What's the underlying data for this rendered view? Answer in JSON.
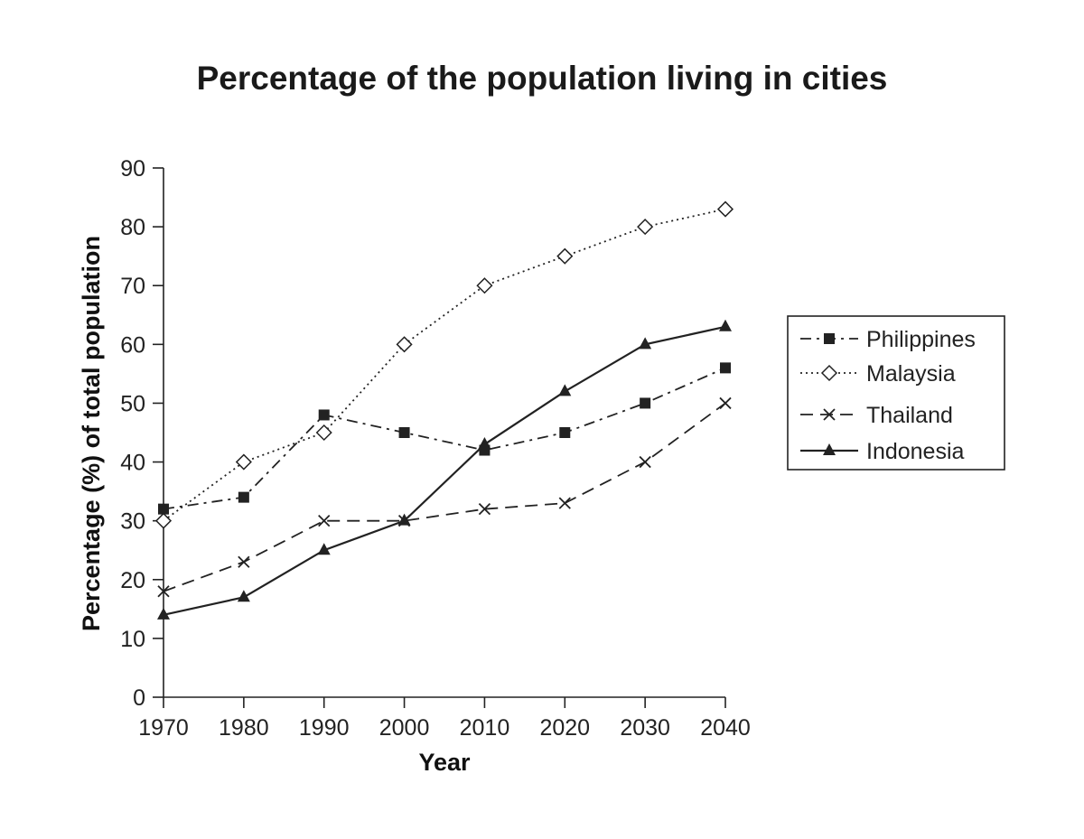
{
  "chart_data": {
    "type": "line",
    "title": "Percentage of the population living in cities",
    "xlabel": "Year",
    "ylabel": "Percentage (%) of total population",
    "x": [
      1970,
      1980,
      1990,
      2000,
      2010,
      2020,
      2030,
      2040
    ],
    "x_tick_labels": [
      "1970",
      "1980",
      "1990",
      "2000",
      "2010",
      "2020",
      "2030",
      "2040"
    ],
    "y_ticks": [
      0,
      10,
      20,
      30,
      40,
      50,
      60,
      70,
      80,
      90
    ],
    "y_tick_labels": [
      "0",
      "10",
      "20",
      "30",
      "40",
      "50",
      "60",
      "70",
      "80",
      "90"
    ],
    "ylim": [
      0,
      90
    ],
    "grid": false,
    "legend_position": "right",
    "series": [
      {
        "name": "Philippines",
        "values": [
          32,
          34,
          48,
          45,
          42,
          45,
          50,
          56
        ],
        "line_style": "dash-dot",
        "marker": "filled-square"
      },
      {
        "name": "Malaysia",
        "values": [
          30,
          40,
          45,
          60,
          70,
          75,
          80,
          83
        ],
        "line_style": "dotted",
        "marker": "open-diamond"
      },
      {
        "name": "Thailand",
        "values": [
          18,
          23,
          30,
          30,
          32,
          33,
          40,
          50
        ],
        "line_style": "dashed",
        "marker": "x-cross"
      },
      {
        "name": "Indonesia",
        "values": [
          14,
          17,
          25,
          30,
          43,
          52,
          60,
          63
        ],
        "line_style": "solid",
        "marker": "filled-triangle"
      }
    ]
  }
}
